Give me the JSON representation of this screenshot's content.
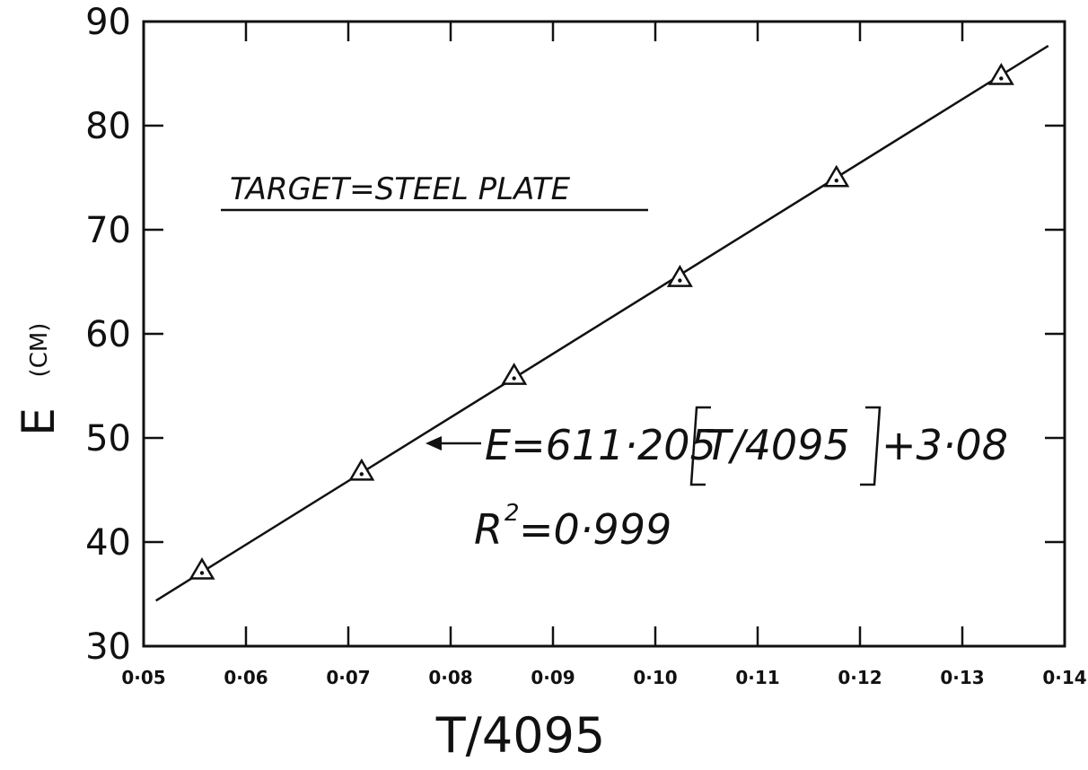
{
  "chart_data": {
    "type": "scatter",
    "title": "",
    "xlabel": "T/4095",
    "ylabel": "E",
    "ylabel_unit": "(CM)",
    "xlim": [
      0.05,
      0.14
    ],
    "ylim": [
      30,
      90
    ],
    "x_ticks": [
      {
        "value": 0.05,
        "label": "0·05"
      },
      {
        "value": 0.06,
        "label": "0·06"
      },
      {
        "value": 0.07,
        "label": "0·07"
      },
      {
        "value": 0.08,
        "label": "0·08"
      },
      {
        "value": 0.09,
        "label": "0·09"
      },
      {
        "value": 0.1,
        "label": "0·10"
      },
      {
        "value": 0.11,
        "label": "0·11"
      },
      {
        "value": 0.12,
        "label": "0·12"
      },
      {
        "value": 0.13,
        "label": "0·13"
      },
      {
        "value": 0.14,
        "label": "0·14"
      }
    ],
    "y_ticks": [
      30,
      40,
      50,
      60,
      70,
      80,
      90
    ],
    "series": [
      {
        "marker": "triangle",
        "x": [
          0.0557,
          0.0713,
          0.0862,
          0.1024,
          0.1177,
          0.1338
        ],
        "y": [
          37.2,
          46.7,
          55.9,
          65.3,
          74.9,
          84.7
        ]
      }
    ],
    "fit_line": {
      "slope": 611.205,
      "intercept": 3.08,
      "x_range": [
        0.0512,
        0.1384
      ]
    },
    "grid": false,
    "annotations": {
      "target_text": "TARGET=STEEL PLATE",
      "equation_text": "E=611·205",
      "equation_bracket": "T/4095",
      "equation_tail": "+3·08",
      "r2_prefix": "R",
      "r2_sup": "2",
      "r2_value": "=0·999"
    }
  }
}
